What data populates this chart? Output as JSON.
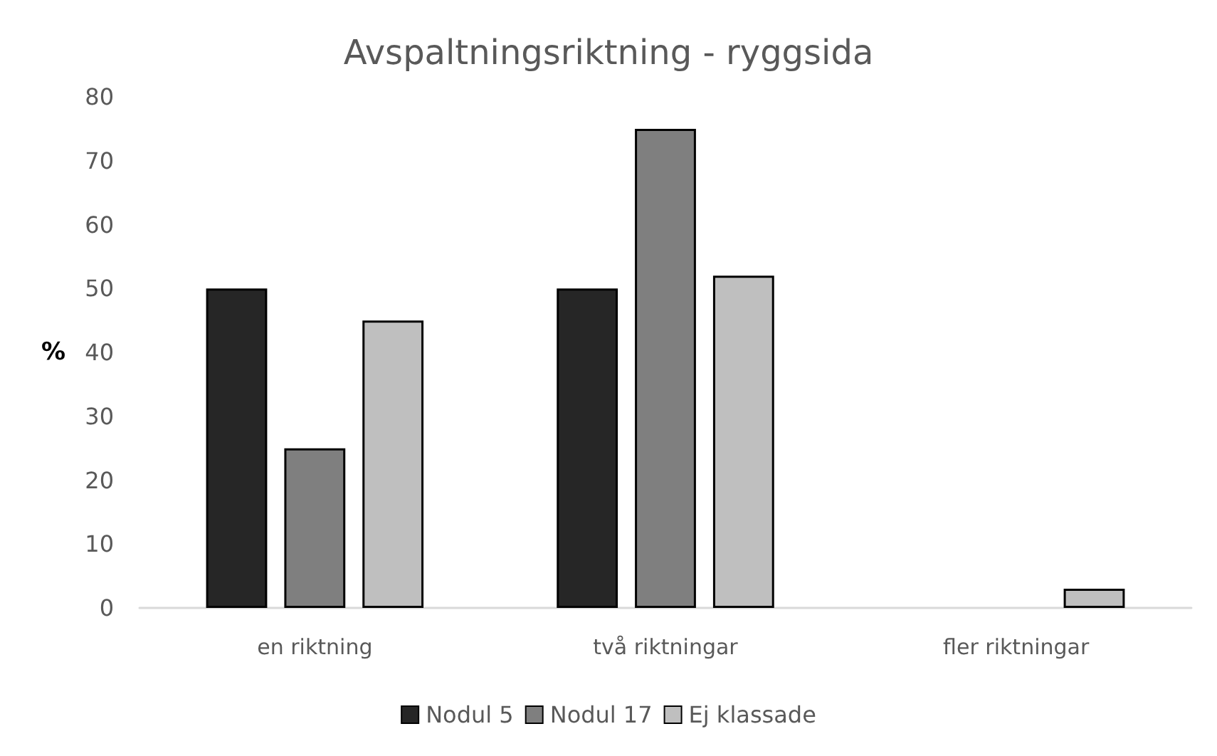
{
  "chart_data": {
    "type": "bar",
    "title": "Avspaltningsriktning - ryggsida",
    "ylabel": "%",
    "categories": [
      "en riktning",
      "två riktningar",
      "fler riktningar"
    ],
    "series": [
      {
        "name": "Nodul 5",
        "color": "#262626",
        "values": [
          50,
          50,
          0
        ]
      },
      {
        "name": "Nodul 17",
        "color": "#7f7f7f",
        "values": [
          25,
          75,
          0
        ]
      },
      {
        "name": "Ej klassade",
        "color": "#bfbfbf",
        "values": [
          45,
          52,
          3
        ]
      }
    ],
    "ylim": [
      0,
      80
    ],
    "yticks": [
      0,
      10,
      20,
      30,
      40,
      50,
      60,
      70,
      80
    ],
    "grid": false,
    "legend": "bottom"
  }
}
